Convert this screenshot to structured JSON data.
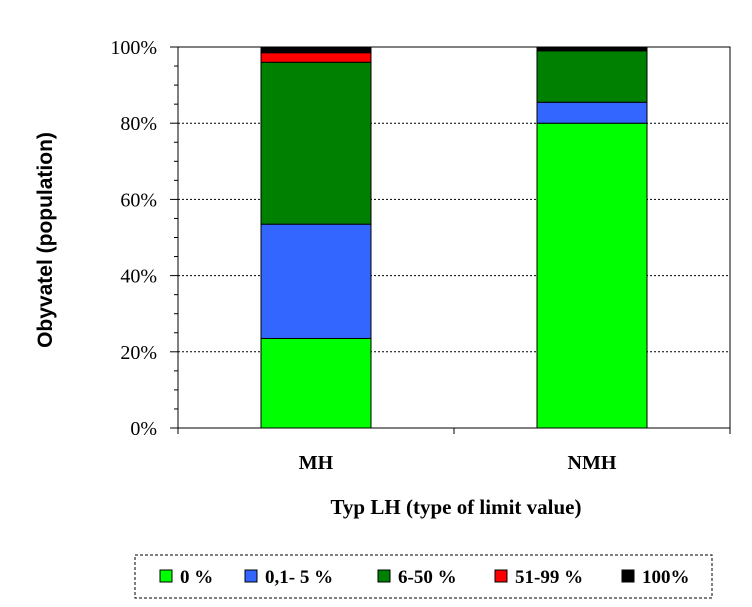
{
  "chart_data": {
    "type": "bar",
    "stacked": true,
    "percent_stacked": true,
    "categories": [
      "MH",
      "NMH"
    ],
    "series": [
      {
        "name": "0 %",
        "color": "#00ff00",
        "values": [
          23.5,
          80.0
        ]
      },
      {
        "name": "0,1- 5 %",
        "color": "#3366ff",
        "values": [
          30.0,
          5.5
        ]
      },
      {
        "name": "6-50 %",
        "color": "#008000",
        "values": [
          42.5,
          13.5
        ]
      },
      {
        "name": "51-99 %",
        "color": "#ff0000",
        "values": [
          2.5,
          0.0
        ]
      },
      {
        "name": "100%",
        "color": "#000000",
        "values": [
          1.5,
          1.0
        ]
      }
    ],
    "xlabel": "Typ LH (type of limit value)",
    "ylabel": "Obyvatel (population)",
    "ylim": [
      0,
      100
    ],
    "yticks": [
      "0%",
      "20%",
      "40%",
      "60%",
      "80%",
      "100%"
    ],
    "grid": true,
    "legend_position": "bottom"
  }
}
